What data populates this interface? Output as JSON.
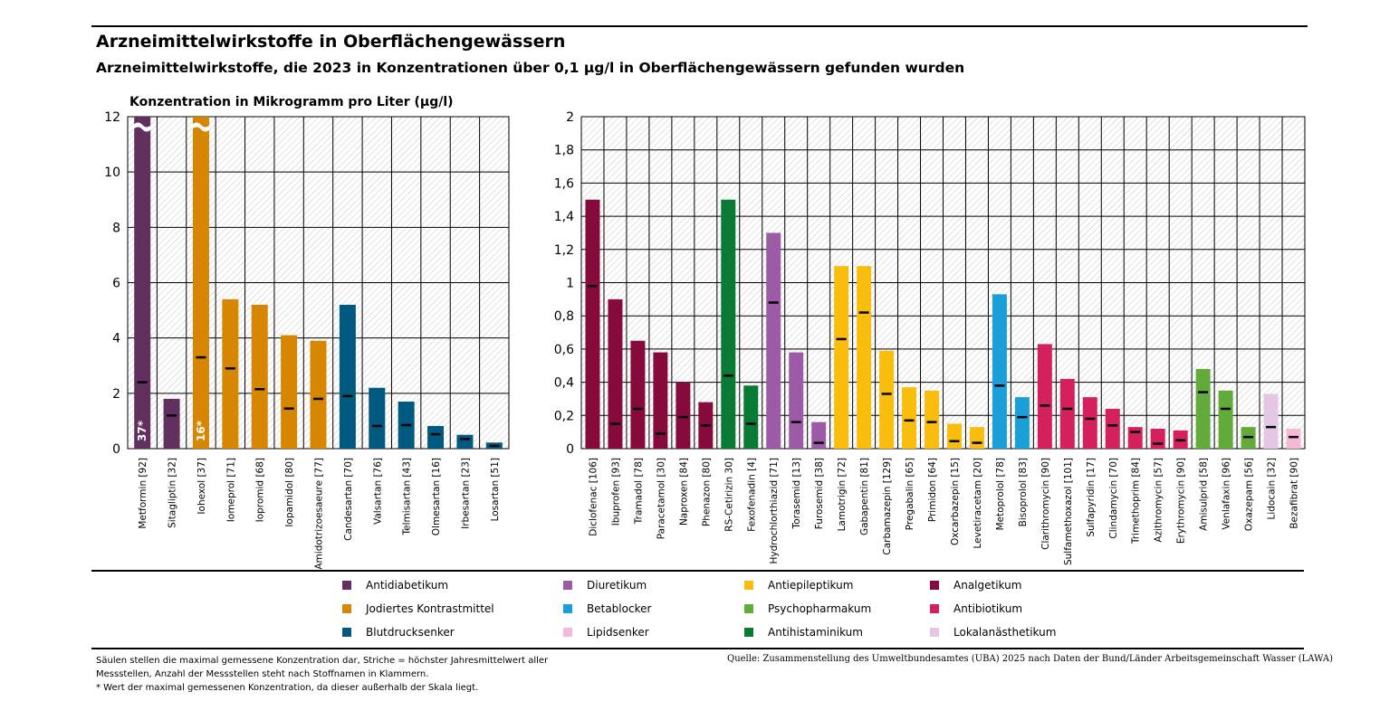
{
  "title": "Arzneimittelwirkstoffe in Oberflächengewässern",
  "subtitle": "Arzneimittelwirkstoffe, die 2023 in Konzentrationen über 0,1 µg/l in Oberflächengewässern gefunden wurden",
  "ylabel": "Konzentration in Mikrogramm pro Liter (µg/l)",
  "footnote_1": "Säulen stellen die maximal gemessene Konzentration dar, Striche = höchster Jahresmittelwert aller Messstellen, Anzahl der Messstellen steht nach Stoffnamen in Klammern.",
  "footnote_2": "* Wert der maximal gemessenen Konzentration, da dieser außerhalb der Skala liegt.",
  "source": "Quelle: Zusammenstellung des Umweltbundesamtes (UBA) 2025 nach Daten der Bund/Länder Arbeitsgemeinschaft Wasser (LAWA)",
  "colors": {
    "antidiabetikum": "#61305f",
    "kontrastmittel": "#d78602",
    "blutdrucksenker": "#005a7f",
    "diuretikum": "#9b5ba5",
    "betablocker": "#1a9fd8",
    "lipidsenker": "#f5b8d6",
    "antiepileptikum": "#fbbd0c",
    "psychopharmakum": "#62aa39",
    "antihistaminikum": "#087a33",
    "analgetikum": "#860a3c",
    "antibiotikum": "#d4215e",
    "lokalanaesthetikum": "#e5c7e5"
  },
  "legend": [
    {
      "label": "Antidiabetikum",
      "color": "#61305f"
    },
    {
      "label": "Jodiertes Kontrastmittel",
      "color": "#d78602"
    },
    {
      "label": "Blutdrucksenker",
      "color": "#005a7f"
    },
    {
      "label": "Diuretikum",
      "color": "#9b5ba5"
    },
    {
      "label": "Betablocker",
      "color": "#1a9fd8"
    },
    {
      "label": "Lipidsenker",
      "color": "#f5b8d6"
    },
    {
      "label": "Antiepileptikum",
      "color": "#fbbd0c"
    },
    {
      "label": "Psychopharmakum",
      "color": "#62aa39"
    },
    {
      "label": "Antihistaminikum",
      "color": "#087a33"
    },
    {
      "label": "Analgetikum",
      "color": "#860a3c"
    },
    {
      "label": "Antibiotikum",
      "color": "#d4215e"
    },
    {
      "label": "Lokalanästhetikum",
      "color": "#e5c7e5"
    }
  ],
  "chart_data": [
    {
      "type": "bar",
      "ylim": [
        0,
        12
      ],
      "yticks": [
        0,
        2,
        4,
        6,
        8,
        10,
        12
      ],
      "ytick_labels": [
        "0",
        "2",
        "4",
        "6",
        "8",
        "10",
        "12"
      ],
      "grid": true,
      "categories": [
        "Metformin [92]",
        "Sitagliptin [32]",
        "Iohexol [37]",
        "Iomeprol [71]",
        "Iopromid [68]",
        "Iopamidol [80]",
        "Amidotrizoesaeure [77]",
        "Candesartan [70]",
        "Valsartan [76]",
        "Telmisartan [43]",
        "Olmesartan [16]",
        "Irbesartan [23]",
        "Losartan [51]"
      ],
      "values": [
        37,
        1.8,
        16,
        5.4,
        5.2,
        4.1,
        3.9,
        5.2,
        2.2,
        1.7,
        0.82,
        0.5,
        0.22
      ],
      "means": [
        2.4,
        1.2,
        3.3,
        2.9,
        2.15,
        1.45,
        1.8,
        1.9,
        0.82,
        0.85,
        0.52,
        0.35,
        0.1
      ],
      "groups": [
        "antidiabetikum",
        "antidiabetikum",
        "kontrastmittel",
        "kontrastmittel",
        "kontrastmittel",
        "kontrastmittel",
        "kontrastmittel",
        "blutdrucksenker",
        "blutdrucksenker",
        "blutdrucksenker",
        "blutdrucksenker",
        "blutdrucksenker",
        "blutdrucksenker"
      ],
      "bar_labels": [
        "37*",
        "",
        "16*",
        "",
        "",
        "",
        "",
        "",
        "",
        "",
        "",
        "",
        ""
      ]
    },
    {
      "type": "bar",
      "ylim": [
        0,
        2
      ],
      "yticks": [
        0,
        0.2,
        0.4,
        0.6,
        0.8,
        1,
        1.2,
        1.4,
        1.6,
        1.8,
        2
      ],
      "ytick_labels": [
        "0",
        "0,2",
        "0,4",
        "0,6",
        "0,8",
        "1",
        "1,2",
        "1,4",
        "1,6",
        "1,8",
        "2"
      ],
      "grid": true,
      "categories": [
        "Diclofenac [106]",
        "Ibuprofen [93]",
        "Tramadol [78]",
        "Paracetamol [30]",
        "Naproxen [84]",
        "Phenazon [80]",
        "RS-Cetirizin 30]",
        "Fexofenadin [4]",
        "Hydrochlorthiazid [71]",
        "Torasemid [13]",
        "Furosemid [38]",
        "Lamotrigin [72]",
        "Gabapentin [81]",
        "Carbamazepin [129]",
        "Pregabalin [65]",
        "Primidon [64]",
        "Oxcarbazepin [15]",
        "Levetiracetam [20]",
        "Metoprolol [78]",
        "Bisoprolol [83]",
        "Clarithromycin [90]",
        "Sulfamethoxazol [101]",
        "Sulfapyridin [17]",
        "Clindamycin [70]",
        "Trimethoprim [84]",
        "Azithromycin [57]",
        "Erythromycin [90]",
        "Amisulprid [58]",
        "Venlafaxin [96]",
        "Oxazepam [56]",
        "Lidocain [32]",
        "Bezafibrat [90]"
      ],
      "values": [
        1.5,
        0.9,
        0.65,
        0.58,
        0.4,
        0.28,
        1.5,
        0.38,
        1.3,
        0.58,
        0.16,
        1.1,
        1.1,
        0.59,
        0.37,
        0.35,
        0.15,
        0.13,
        0.93,
        0.31,
        0.63,
        0.42,
        0.31,
        0.24,
        0.13,
        0.12,
        0.11,
        0.48,
        0.35,
        0.13,
        0.33,
        0.12
      ],
      "means": [
        0.98,
        0.15,
        0.24,
        0.09,
        0.19,
        0.14,
        0.44,
        0.15,
        0.88,
        0.16,
        0.035,
        0.66,
        0.82,
        0.33,
        0.17,
        0.16,
        0.045,
        0.035,
        0.38,
        0.19,
        0.26,
        0.24,
        0.18,
        0.14,
        0.1,
        0.03,
        0.05,
        0.34,
        0.24,
        0.07,
        0.13,
        0.07
      ],
      "groups": [
        "analgetikum",
        "analgetikum",
        "analgetikum",
        "analgetikum",
        "analgetikum",
        "analgetikum",
        "antihistaminikum",
        "antihistaminikum",
        "diuretikum",
        "diuretikum",
        "diuretikum",
        "antiepileptikum",
        "antiepileptikum",
        "antiepileptikum",
        "antiepileptikum",
        "antiepileptikum",
        "antiepileptikum",
        "antiepileptikum",
        "betablocker",
        "betablocker",
        "antibiotikum",
        "antibiotikum",
        "antibiotikum",
        "antibiotikum",
        "antibiotikum",
        "antibiotikum",
        "antibiotikum",
        "psychopharmakum",
        "psychopharmakum",
        "psychopharmakum",
        "lokalanaesthetikum",
        "lipidsenker"
      ]
    }
  ]
}
